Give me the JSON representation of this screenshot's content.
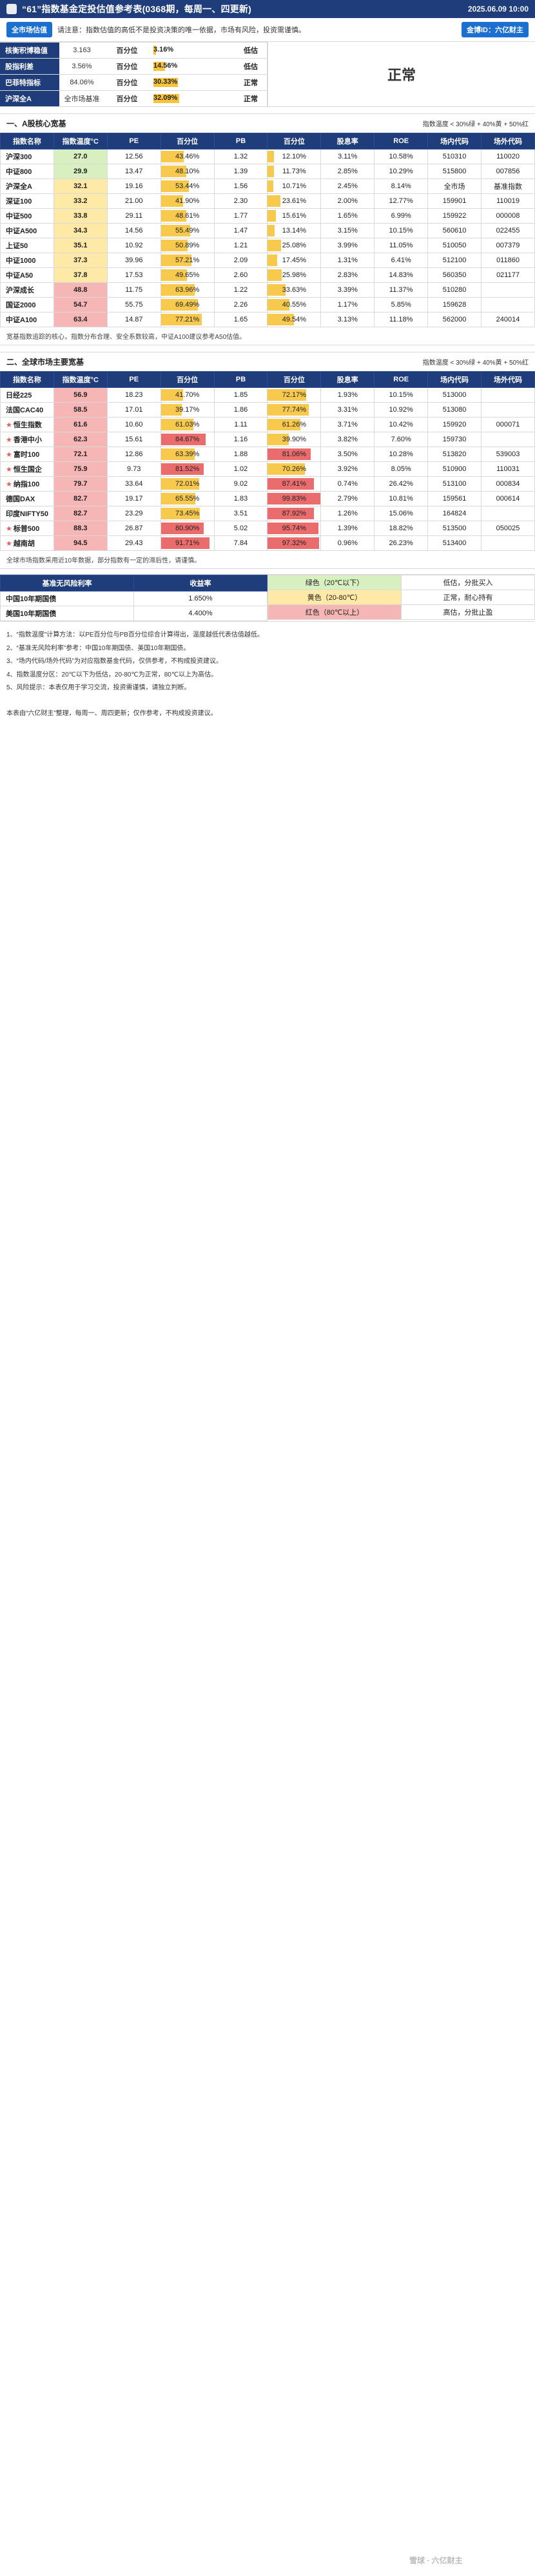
{
  "header": {
    "title": "“61”指数基金定投估值参考表(0368期，每周一、四更新)",
    "date": "2025.06.09 10:00"
  },
  "notice": {
    "left_pill": "全市场估值",
    "text": "请注意：指数估值的高低不是投资决策的唯一依据，市场有风险，投资需谨慎。",
    "right_pill": "金博ID：六亿财主"
  },
  "market_summary": {
    "rows": [
      {
        "label": "核衡积博稳值",
        "value": "3.163",
        "mid": "百分位",
        "pct": "3.16%",
        "pct_fill": 0.0316,
        "status": "低估"
      },
      {
        "label": "股指利差",
        "value": "3.56%",
        "mid": "百分位",
        "pct": "14.56%",
        "pct_fill": 0.1456,
        "status": "低估"
      },
      {
        "label": "巴菲特指标",
        "value": "84.06%",
        "mid": "百分位",
        "pct": "30.33%",
        "pct_fill": 0.3033,
        "status": "正常"
      },
      {
        "label": "沪深全A",
        "value": "全市场基准",
        "mid": "百分位",
        "pct": "32.09%",
        "pct_fill": 0.3209,
        "status": "正常"
      }
    ],
    "overall_status": "正常"
  },
  "sections": [
    {
      "id": "a",
      "title": "一、A股核心宽基",
      "legend": "指数温度 < 30%绿 + 40%黄 + 50%红",
      "columns": [
        "指数名称",
        "指数温度°C",
        "PE",
        "百分位",
        "PB",
        "百分位",
        "股息率",
        "ROE",
        "场内代码",
        "场外代码"
      ],
      "rows": [
        {
          "name": "沪深300",
          "tag": "",
          "temp": "27.0",
          "temp_lvl": "green",
          "pe": "12.56",
          "pe_pct": "43.46%",
          "pe_fill": 0.4346,
          "pb": "1.32",
          "pb_pct": "12.10%",
          "pb_fill": 0.121,
          "div": "3.11%",
          "roe": "10.58%",
          "code": "510310",
          "otc": "110020"
        },
        {
          "name": "中证800",
          "tag": "",
          "temp": "29.9",
          "temp_lvl": "green",
          "pe": "13.47",
          "pe_pct": "48.10%",
          "pe_fill": 0.481,
          "pb": "1.39",
          "pb_pct": "11.73%",
          "pb_fill": 0.1173,
          "div": "2.85%",
          "roe": "10.29%",
          "code": "515800",
          "otc": "007856"
        },
        {
          "name": "沪深全A",
          "tag": "",
          "temp": "32.1",
          "temp_lvl": "yellow",
          "pe": "19.16",
          "pe_pct": "53.44%",
          "pe_fill": 0.5344,
          "pb": "1.56",
          "pb_pct": "10.71%",
          "pb_fill": 0.1071,
          "div": "2.45%",
          "roe": "8.14%",
          "code": "全市场",
          "otc": "基准指数"
        },
        {
          "name": "深证100",
          "tag": "",
          "temp": "33.2",
          "temp_lvl": "yellow",
          "pe": "21.00",
          "pe_pct": "41.90%",
          "pe_fill": 0.419,
          "pb": "2.30",
          "pb_pct": "23.61%",
          "pb_fill": 0.2361,
          "div": "2.00%",
          "roe": "12.77%",
          "code": "159901",
          "otc": "110019"
        },
        {
          "name": "中证500",
          "tag": "",
          "temp": "33.8",
          "temp_lvl": "yellow",
          "pe": "29.11",
          "pe_pct": "48.61%",
          "pe_fill": 0.4861,
          "pb": "1.77",
          "pb_pct": "15.61%",
          "pb_fill": 0.1561,
          "div": "1.65%",
          "roe": "6.99%",
          "code": "159922",
          "otc": "000008"
        },
        {
          "name": "中证A500",
          "tag": "",
          "temp": "34.3",
          "temp_lvl": "yellow",
          "pe": "14.56",
          "pe_pct": "55.49%",
          "pe_fill": 0.5549,
          "pb": "1.47",
          "pb_pct": "13.14%",
          "pb_fill": 0.1314,
          "div": "3.15%",
          "roe": "10.15%",
          "code": "560610",
          "otc": "022455"
        },
        {
          "name": "上证50",
          "tag": "",
          "temp": "35.1",
          "temp_lvl": "yellow",
          "pe": "10.92",
          "pe_pct": "50.89%",
          "pe_fill": 0.5089,
          "pb": "1.21",
          "pb_pct": "25.08%",
          "pb_fill": 0.2508,
          "div": "3.99%",
          "roe": "11.05%",
          "code": "510050",
          "otc": "007379"
        },
        {
          "name": "中证1000",
          "tag": "",
          "temp": "37.3",
          "temp_lvl": "yellow",
          "pe": "39.96",
          "pe_pct": "57.21%",
          "pe_fill": 0.5721,
          "pb": "2.09",
          "pb_pct": "17.45%",
          "pb_fill": 0.1745,
          "div": "1.31%",
          "roe": "6.41%",
          "code": "512100",
          "otc": "011860"
        },
        {
          "name": "中证A50",
          "tag": "",
          "temp": "37.8",
          "temp_lvl": "yellow",
          "pe": "17.53",
          "pe_pct": "49.65%",
          "pe_fill": 0.4965,
          "pb": "2.60",
          "pb_pct": "25.98%",
          "pb_fill": 0.2598,
          "div": "2.83%",
          "roe": "14.83%",
          "code": "560350",
          "otc": "021177"
        },
        {
          "name": "沪深成长",
          "tag": "",
          "temp": "48.8",
          "temp_lvl": "red",
          "pe": "11.75",
          "pe_pct": "63.96%",
          "pe_fill": 0.6396,
          "pb": "1.22",
          "pb_pct": "33.63%",
          "pb_fill": 0.3363,
          "div": "3.39%",
          "roe": "11.37%",
          "code": "510280",
          "otc": ""
        },
        {
          "name": "国证2000",
          "tag": "",
          "temp": "54.7",
          "temp_lvl": "red",
          "pe": "55.75",
          "pe_pct": "69.49%",
          "pe_fill": 0.6949,
          "pb": "2.26",
          "pb_pct": "40.55%",
          "pb_fill": 0.4055,
          "div": "1.17%",
          "roe": "5.85%",
          "code": "159628",
          "otc": ""
        },
        {
          "name": "中证A100",
          "tag": "",
          "temp": "63.4",
          "temp_lvl": "red",
          "pe": "14.87",
          "pe_pct": "77.21%",
          "pe_fill": 0.7721,
          "pb": "1.65",
          "pb_pct": "49.54%",
          "pb_fill": 0.4954,
          "div": "3.13%",
          "roe": "11.18%",
          "code": "562000",
          "otc": "240014"
        }
      ],
      "note": "宽基指数追踪的核心，指数分布合理、安全系数较高，中证A100建议参考A50估值。"
    },
    {
      "id": "b",
      "title": "二、全球市场主要宽基",
      "legend": "指数温度 < 30%绿 + 40%黄 + 50%红",
      "columns": [
        "指数名称",
        "指数温度°C",
        "PE",
        "百分位",
        "PB",
        "百分位",
        "股息率",
        "ROE",
        "场内代码",
        "场外代码"
      ],
      "rows": [
        {
          "name": "日经225",
          "tag": "",
          "temp": "56.9",
          "temp_lvl": "red",
          "pe": "18.23",
          "pe_pct": "41.70%",
          "pe_fill": 0.417,
          "pb": "1.85",
          "pb_pct": "72.17%",
          "pb_fill": 0.7217,
          "div": "1.93%",
          "roe": "10.15%",
          "code": "513000",
          "otc": ""
        },
        {
          "name": "法国CAC40",
          "tag": "",
          "temp": "58.5",
          "temp_lvl": "red",
          "pe": "17.01",
          "pe_pct": "39.17%",
          "pe_fill": 0.3917,
          "pb": "1.86",
          "pb_pct": "77.74%",
          "pb_fill": 0.7774,
          "div": "3.31%",
          "roe": "10.92%",
          "code": "513080",
          "otc": ""
        },
        {
          "name": "恒生指数",
          "tag": "new",
          "temp": "61.6",
          "temp_lvl": "red",
          "pe": "10.60",
          "pe_pct": "61.03%",
          "pe_fill": 0.6103,
          "pb": "1.11",
          "pb_pct": "61.26%",
          "pb_fill": 0.6126,
          "div": "3.71%",
          "roe": "10.42%",
          "code": "159920",
          "otc": "000071"
        },
        {
          "name": "香港中小",
          "tag": "new",
          "temp": "62.3",
          "temp_lvl": "red",
          "pe": "15.61",
          "pe_pct": "84.67%",
          "pe_fill": 0.8467,
          "pb": "1.16",
          "pb_pct": "39.90%",
          "pb_fill": 0.399,
          "div": "3.82%",
          "roe": "7.60%",
          "code": "159730",
          "otc": ""
        },
        {
          "name": "富时100",
          "tag": "new",
          "temp": "72.1",
          "temp_lvl": "red",
          "pe": "12.86",
          "pe_pct": "63.39%",
          "pe_fill": 0.6339,
          "pb": "1.88",
          "pb_pct": "81.06%",
          "pb_fill": 0.8106,
          "div": "3.50%",
          "roe": "10.28%",
          "code": "513820",
          "otc": "539003"
        },
        {
          "name": "恒生国企",
          "tag": "new",
          "temp": "75.9",
          "temp_lvl": "red",
          "pe": "9.73",
          "pe_pct": "81.52%",
          "pe_fill": 0.8152,
          "pb": "1.02",
          "pb_pct": "70.26%",
          "pb_fill": 0.7026,
          "div": "3.92%",
          "roe": "8.05%",
          "code": "510900",
          "otc": "110031"
        },
        {
          "name": "纳指100",
          "tag": "new",
          "temp": "79.7",
          "temp_lvl": "red",
          "pe": "33.64",
          "pe_pct": "72.01%",
          "pe_fill": 0.7201,
          "pb": "9.02",
          "pb_pct": "87.41%",
          "pb_fill": 0.8741,
          "div": "0.74%",
          "roe": "26.42%",
          "code": "513100",
          "otc": "000834"
        },
        {
          "name": "德国DAX",
          "tag": "",
          "temp": "82.7",
          "temp_lvl": "red",
          "pe": "19.17",
          "pe_pct": "65.55%",
          "pe_fill": 0.6555,
          "pb": "1.83",
          "pb_pct": "99.83%",
          "pb_fill": 0.9983,
          "div": "2.79%",
          "roe": "10.81%",
          "code": "159561",
          "otc": "000614"
        },
        {
          "name": "印度NIFTY50",
          "tag": "",
          "temp": "82.7",
          "temp_lvl": "red",
          "pe": "23.29",
          "pe_pct": "73.45%",
          "pe_fill": 0.7345,
          "pb": "3.51",
          "pb_pct": "87.92%",
          "pb_fill": 0.8792,
          "div": "1.26%",
          "roe": "15.06%",
          "code": "164824",
          "otc": ""
        },
        {
          "name": "标普500",
          "tag": "new",
          "temp": "88.3",
          "temp_lvl": "red",
          "pe": "26.87",
          "pe_pct": "80.90%",
          "pe_fill": 0.809,
          "pb": "5.02",
          "pb_pct": "95.74%",
          "pb_fill": 0.9574,
          "div": "1.39%",
          "roe": "18.82%",
          "code": "513500",
          "otc": "050025"
        },
        {
          "name": "越南胡",
          "tag": "new",
          "temp": "94.5",
          "temp_lvl": "red",
          "pe": "29.43",
          "pe_pct": "91.71%",
          "pe_fill": 0.9171,
          "pb": "7.84",
          "pb_pct": "97.32%",
          "pb_fill": 0.9732,
          "div": "0.96%",
          "roe": "26.23%",
          "code": "513400",
          "otc": ""
        }
      ],
      "note": "全球市场指数采用近10年数据，部分指数有一定的滞后性，请谨慎。"
    }
  ],
  "bottom": {
    "title": "基准无风险利率",
    "columns": [
      "基准无风险利率",
      "收益率",
      "",
      "",
      ""
    ],
    "rows": [
      {
        "name": "中国10年期国债",
        "yield": "1.650%"
      },
      {
        "name": "美国10年期国债",
        "yield": "4.400%"
      }
    ],
    "legend_rows": [
      {
        "color": "绿色（20℃以下）",
        "meaning": "低估，分批买入"
      },
      {
        "color": "黄色（20-80℃）",
        "meaning": "正常，耐心持有"
      },
      {
        "color": "红色（80℃以上）",
        "meaning": "高估，分批止盈"
      }
    ]
  },
  "notes": [
    "1、“指数温度”计算方法：以PE百分位与PB百分位综合计算得出，温度越低代表估值越低。",
    "2、“基准无风险利率”参考：中国10年期国债、美国10年期国债。",
    "3、“场内代码/场外代码”为对应指数基金代码，仅供参考，不构成投资建议。",
    "4、指数温度分区：20℃以下为低估，20-80℃为正常，80℃以上为高估。",
    "5、风险提示：本表仅用于学习交流，投资需谨慎，请独立判断。"
  ],
  "footer": {
    "text": "本表由“六亿财主”整理，每周一、周四更新；仅作参考，不构成投资建议。"
  },
  "watermark": "雪球 · 六亿财主"
}
